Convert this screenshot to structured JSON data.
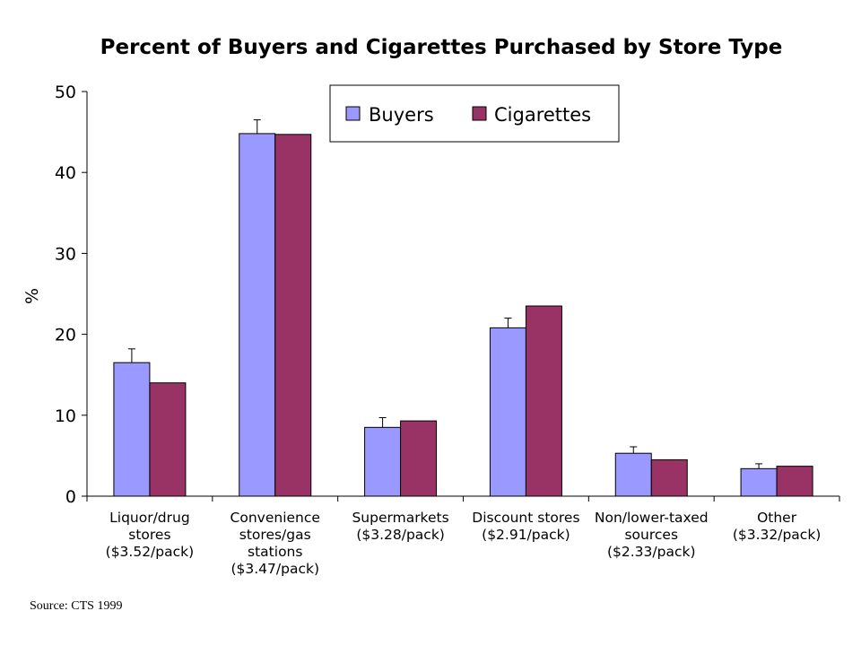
{
  "chart_data": {
    "type": "bar",
    "title": "Percent of Buyers and Cigarettes Purchased by Store Type",
    "ylabel": "%",
    "xlabel": "",
    "ylim": [
      0,
      50
    ],
    "yticks": [
      0,
      10,
      20,
      30,
      40,
      50
    ],
    "categories": [
      [
        "Liquor/drug",
        "stores",
        "($3.52/pack)"
      ],
      [
        "Convenience",
        "stores/gas",
        "stations",
        "($3.47/pack)"
      ],
      [
        "Supermarkets",
        "($3.28/pack)"
      ],
      [
        "Discount stores",
        "($2.91/pack)"
      ],
      [
        "Non/lower-taxed",
        "sources",
        "($2.33/pack)"
      ],
      [
        "Other",
        "($3.32/pack)"
      ]
    ],
    "series": [
      {
        "name": "Buyers",
        "color": "#9999ff",
        "values": [
          16.5,
          44.8,
          8.5,
          20.8,
          5.3,
          3.4
        ],
        "error_upper": [
          18.2,
          46.5,
          9.7,
          22.0,
          6.1,
          4.0
        ]
      },
      {
        "name": "Cigarettes",
        "color": "#993366",
        "values": [
          14.0,
          44.7,
          9.3,
          23.5,
          4.5,
          3.7
        ]
      }
    ],
    "legend_position": "top-right",
    "grid": false
  },
  "source": "Source: CTS 1999"
}
